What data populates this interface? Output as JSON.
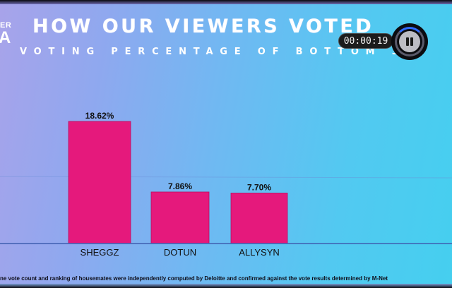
{
  "broadcast": {
    "logo_top": "ER",
    "logo_main": "A",
    "title": "HOW OUR VIEWERS VOTED",
    "subtitle": "VOTING PERCENTAGE OF BOTTOM 3",
    "footnote": "ne vote count and ranking of housemates were independently computed by Deloitte and confirmed against the vote results determined by M-Net"
  },
  "player": {
    "elapsed": "00:00:19",
    "pause_icon": "pause-icon"
  },
  "colors": {
    "bar": "#e5197c",
    "bar_edge": "#b80e5f",
    "baseline": "#3f5fb0",
    "gridline": "#6a8fd8"
  },
  "chart_data": {
    "type": "bar",
    "title": "HOW OUR VIEWERS VOTED",
    "subtitle": "VOTING PERCENTAGE OF BOTTOM 3",
    "categories": [
      "SHEGGZ",
      "DOTUN",
      "ALLYSYN"
    ],
    "values": [
      18.62,
      7.86,
      7.7
    ],
    "data_labels": [
      "18.62%",
      "7.86%",
      "7.70%"
    ],
    "xlabel": "",
    "ylabel": "",
    "ylim": [
      0,
      19
    ],
    "grid": false,
    "legend": "none"
  }
}
